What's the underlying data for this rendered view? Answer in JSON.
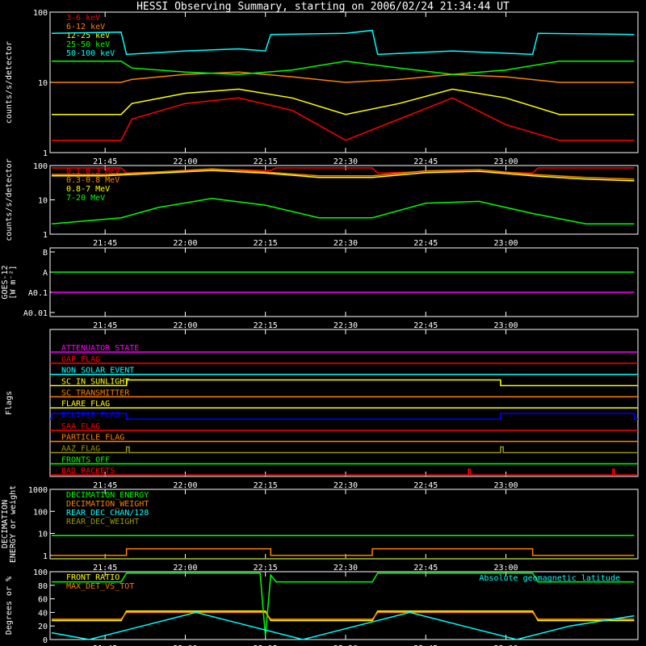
{
  "title": "HESSI Observing Summary, starting on 2006/02/24 21:34:44 UT",
  "time_ticks": [
    "21:45",
    "22:00",
    "22:15",
    "22:30",
    "22:45",
    "23:00"
  ],
  "time_tick_minutes": [
    45,
    60,
    75,
    90,
    105,
    120
  ],
  "colors": {
    "red": "#ff0000",
    "orange": "#ff8000",
    "yellow": "#ffff00",
    "green": "#00ff00",
    "cyan": "#00ffff",
    "magenta": "#ff00ff",
    "blue": "#0000ff",
    "olive": "#999900",
    "axis": "#ffffff"
  },
  "chart_data": [
    {
      "id": "low_energy",
      "type": "line",
      "ylabel": "counts/s/detector",
      "yscale": "log",
      "ylim": [
        1,
        100
      ],
      "ytick_labels": [
        "100",
        "10",
        "1"
      ],
      "ytick_values": [
        100,
        10,
        1
      ],
      "xlim_minutes": [
        34.7,
        144.7
      ],
      "legend_position": "top-left",
      "series": [
        {
          "name": "3-6 keV",
          "color": "red",
          "x": [
            35,
            48,
            50,
            60,
            70,
            80,
            90,
            100,
            110,
            120,
            130,
            144
          ],
          "y": [
            1.5,
            1.5,
            3,
            5,
            6,
            4,
            1.5,
            3,
            6,
            2.5,
            1.5,
            1.5
          ]
        },
        {
          "name": "6-12 keV",
          "color": "orange",
          "x": [
            35,
            48,
            50,
            60,
            70,
            80,
            90,
            100,
            110,
            120,
            130,
            144
          ],
          "y": [
            10,
            10,
            11,
            13,
            14,
            12,
            10,
            11,
            13,
            12,
            10,
            10
          ]
        },
        {
          "name": "12-25 keV",
          "color": "yellow",
          "x": [
            35,
            48,
            50,
            60,
            70,
            80,
            90,
            100,
            110,
            120,
            130,
            144
          ],
          "y": [
            3.5,
            3.5,
            5,
            7,
            8,
            6,
            3.5,
            5,
            8,
            6,
            3.5,
            3.5
          ]
        },
        {
          "name": "25-50 keV",
          "color": "green",
          "x": [
            35,
            48,
            50,
            60,
            70,
            80,
            90,
            100,
            110,
            120,
            130,
            144
          ],
          "y": [
            20,
            20,
            16,
            14,
            13,
            15,
            20,
            16,
            13,
            15,
            20,
            20
          ]
        },
        {
          "name": "50-100 keV",
          "color": "cyan",
          "x": [
            35,
            48,
            49,
            60,
            70,
            75,
            76,
            90,
            95,
            96,
            110,
            120,
            125,
            126,
            144
          ],
          "y": [
            50,
            52,
            25,
            28,
            30,
            28,
            48,
            50,
            55,
            25,
            28,
            26,
            25,
            50,
            48
          ]
        }
      ]
    },
    {
      "id": "high_energy",
      "type": "line",
      "ylabel": "counts/s/detector",
      "yscale": "log",
      "ylim": [
        1,
        100
      ],
      "ytick_labels": [
        "100",
        "10",
        "1"
      ],
      "ytick_values": [
        100,
        10,
        1
      ],
      "xlim_minutes": [
        34.7,
        144.7
      ],
      "legend_position": "top-left",
      "series": [
        {
          "name": "0.1-0.3 MeV",
          "color": "red",
          "x": [
            35,
            48,
            49,
            60,
            70,
            76,
            77,
            95,
            96,
            110,
            125,
            126,
            144
          ],
          "y": [
            85,
            85,
            60,
            70,
            75,
            72,
            85,
            85,
            60,
            70,
            60,
            85,
            85
          ]
        },
        {
          "name": "0.3-0.8 MeV",
          "color": "orange",
          "x": [
            35,
            45,
            55,
            65,
            75,
            85,
            95,
            105,
            115,
            125,
            135,
            144
          ],
          "y": [
            55,
            55,
            65,
            80,
            65,
            50,
            50,
            70,
            75,
            55,
            45,
            40
          ]
        },
        {
          "name": "0.8-7 MeV",
          "color": "yellow",
          "x": [
            35,
            45,
            55,
            65,
            75,
            85,
            95,
            105,
            115,
            125,
            135,
            144
          ],
          "y": [
            50,
            50,
            60,
            72,
            60,
            45,
            45,
            62,
            68,
            50,
            40,
            36
          ]
        },
        {
          "name": "7-20 MeV",
          "color": "green",
          "x": [
            35,
            48,
            55,
            65,
            75,
            85,
            95,
            105,
            115,
            125,
            135,
            144
          ],
          "y": [
            2,
            3,
            6,
            11,
            7,
            3,
            3,
            8,
            9,
            4,
            2,
            2
          ]
        }
      ]
    },
    {
      "id": "goes",
      "type": "line",
      "ylabel_lines": [
        "GOES-12",
        "[W m⁻²]"
      ],
      "ytick_labels": [
        "B",
        "A",
        "A0.1",
        "A0.01"
      ],
      "xlim_minutes": [
        34.7,
        144.7
      ],
      "series": [
        {
          "color": "green",
          "x": [
            35,
            144
          ],
          "y": [
            "A",
            "A"
          ]
        },
        {
          "color": "magenta",
          "x": [
            35,
            144
          ],
          "y": [
            "A0.1",
            "A0.1"
          ]
        }
      ]
    },
    {
      "id": "flags",
      "type": "line",
      "ylabel": "Flags",
      "xlim_minutes": [
        34.7,
        144.7
      ],
      "flags": [
        {
          "name": "ATTENUATOR_STATE",
          "color": "magenta",
          "on": []
        },
        {
          "name": "GAP_FLAG",
          "color": "red",
          "on": []
        },
        {
          "name": "NON_SOLAR_EVENT",
          "color": "cyan",
          "on": []
        },
        {
          "name": "SC_IN_SUNLIGHT",
          "color": "yellow",
          "on": [
            [
              49,
              119
            ]
          ]
        },
        {
          "name": "SC_TRANSMITTER",
          "color": "orange",
          "on": []
        },
        {
          "name": "FLARE_FLAG",
          "color": "yellow",
          "on": []
        },
        {
          "name": "ECLIPSE_FLAG",
          "color": "blue",
          "on": [
            [
              35,
              49
            ],
            [
              119,
              144
            ]
          ]
        },
        {
          "name": "SAA_FLAG",
          "color": "red",
          "on": []
        },
        {
          "name": "PARTICLE_FLAG",
          "color": "orange",
          "on": []
        },
        {
          "name": "AAZ_FLAG",
          "color": "olive",
          "on": [
            [
              49,
              49.5
            ],
            [
              119,
              119.5
            ]
          ]
        },
        {
          "name": "FRONTS_OFF",
          "color": "green",
          "on": []
        },
        {
          "name": "BAD_PACKETS",
          "color": "red",
          "on": [
            [
              113,
              113.3
            ],
            [
              140,
              140.3
            ]
          ]
        }
      ]
    },
    {
      "id": "decimation",
      "type": "line",
      "ylabel_lines": [
        "DECIMATION",
        "ENERGY or weight"
      ],
      "yscale": "log",
      "ylim": [
        0.7,
        1000
      ],
      "ytick_labels": [
        "1000",
        "100",
        "10",
        "1"
      ],
      "ytick_values": [
        1000,
        100,
        10,
        1
      ],
      "xlim_minutes": [
        34.7,
        144.7
      ],
      "legend_position": "top-left",
      "series": [
        {
          "name": "DECIMATION_ENERGY",
          "color": "green",
          "x": [
            35,
            144
          ],
          "y": [
            8,
            8
          ]
        },
        {
          "name": "DECIMATION_WEIGHT",
          "color": "orange",
          "x": [
            35,
            49,
            49,
            76,
            76,
            95,
            95,
            125,
            125,
            144
          ],
          "y": [
            1,
            1,
            2,
            2,
            1,
            1,
            2,
            2,
            1,
            1
          ]
        },
        {
          "name": "REAR_DEC_CHAN/128",
          "color": "cyan",
          "x": [
            35,
            144
          ],
          "y": [
            0.7,
            0.7
          ]
        },
        {
          "name": "REAR_DEC_WEIGHT",
          "color": "olive",
          "x": [
            35,
            144
          ],
          "y": [
            0.7,
            0.7
          ]
        }
      ]
    },
    {
      "id": "ratios",
      "type": "line",
      "ylabel": "Degrees or %",
      "ylim": [
        0,
        100
      ],
      "ytick_labels": [
        "100",
        "80",
        "60",
        "40",
        "20",
        "0"
      ],
      "ytick_values": [
        100,
        80,
        60,
        40,
        20,
        0
      ],
      "xlim_minutes": [
        34.7,
        144.7
      ],
      "legend_position": "top-left",
      "annotation": "Absolute geomagnetic latitude",
      "series": [
        {
          "name": "FRONT_RATIO",
          "color": "yellow",
          "x": [
            35,
            48,
            49,
            75,
            76,
            95,
            96,
            125,
            126,
            144
          ],
          "y": [
            28,
            28,
            42,
            42,
            28,
            28,
            42,
            42,
            28,
            28
          ]
        },
        {
          "name": "MAX_DET_VS_TOT",
          "color": "orange",
          "x": [
            35,
            48,
            49,
            75,
            76,
            95,
            96,
            125,
            126,
            144
          ],
          "y": [
            30,
            30,
            40,
            40,
            30,
            30,
            40,
            40,
            30,
            30
          ]
        },
        {
          "name": "",
          "color": "green",
          "x": [
            35,
            48,
            49,
            74,
            75,
            76,
            77,
            95,
            96,
            125,
            126,
            144
          ],
          "y": [
            85,
            85,
            98,
            98,
            5,
            95,
            85,
            85,
            98,
            98,
            85,
            85
          ]
        },
        {
          "name": "",
          "color": "cyan",
          "x": [
            35,
            42,
            52,
            62,
            72,
            82,
            92,
            102,
            112,
            122,
            132,
            144
          ],
          "y": [
            10,
            0,
            20,
            40,
            20,
            0,
            20,
            40,
            20,
            0,
            20,
            35
          ]
        }
      ]
    }
  ]
}
